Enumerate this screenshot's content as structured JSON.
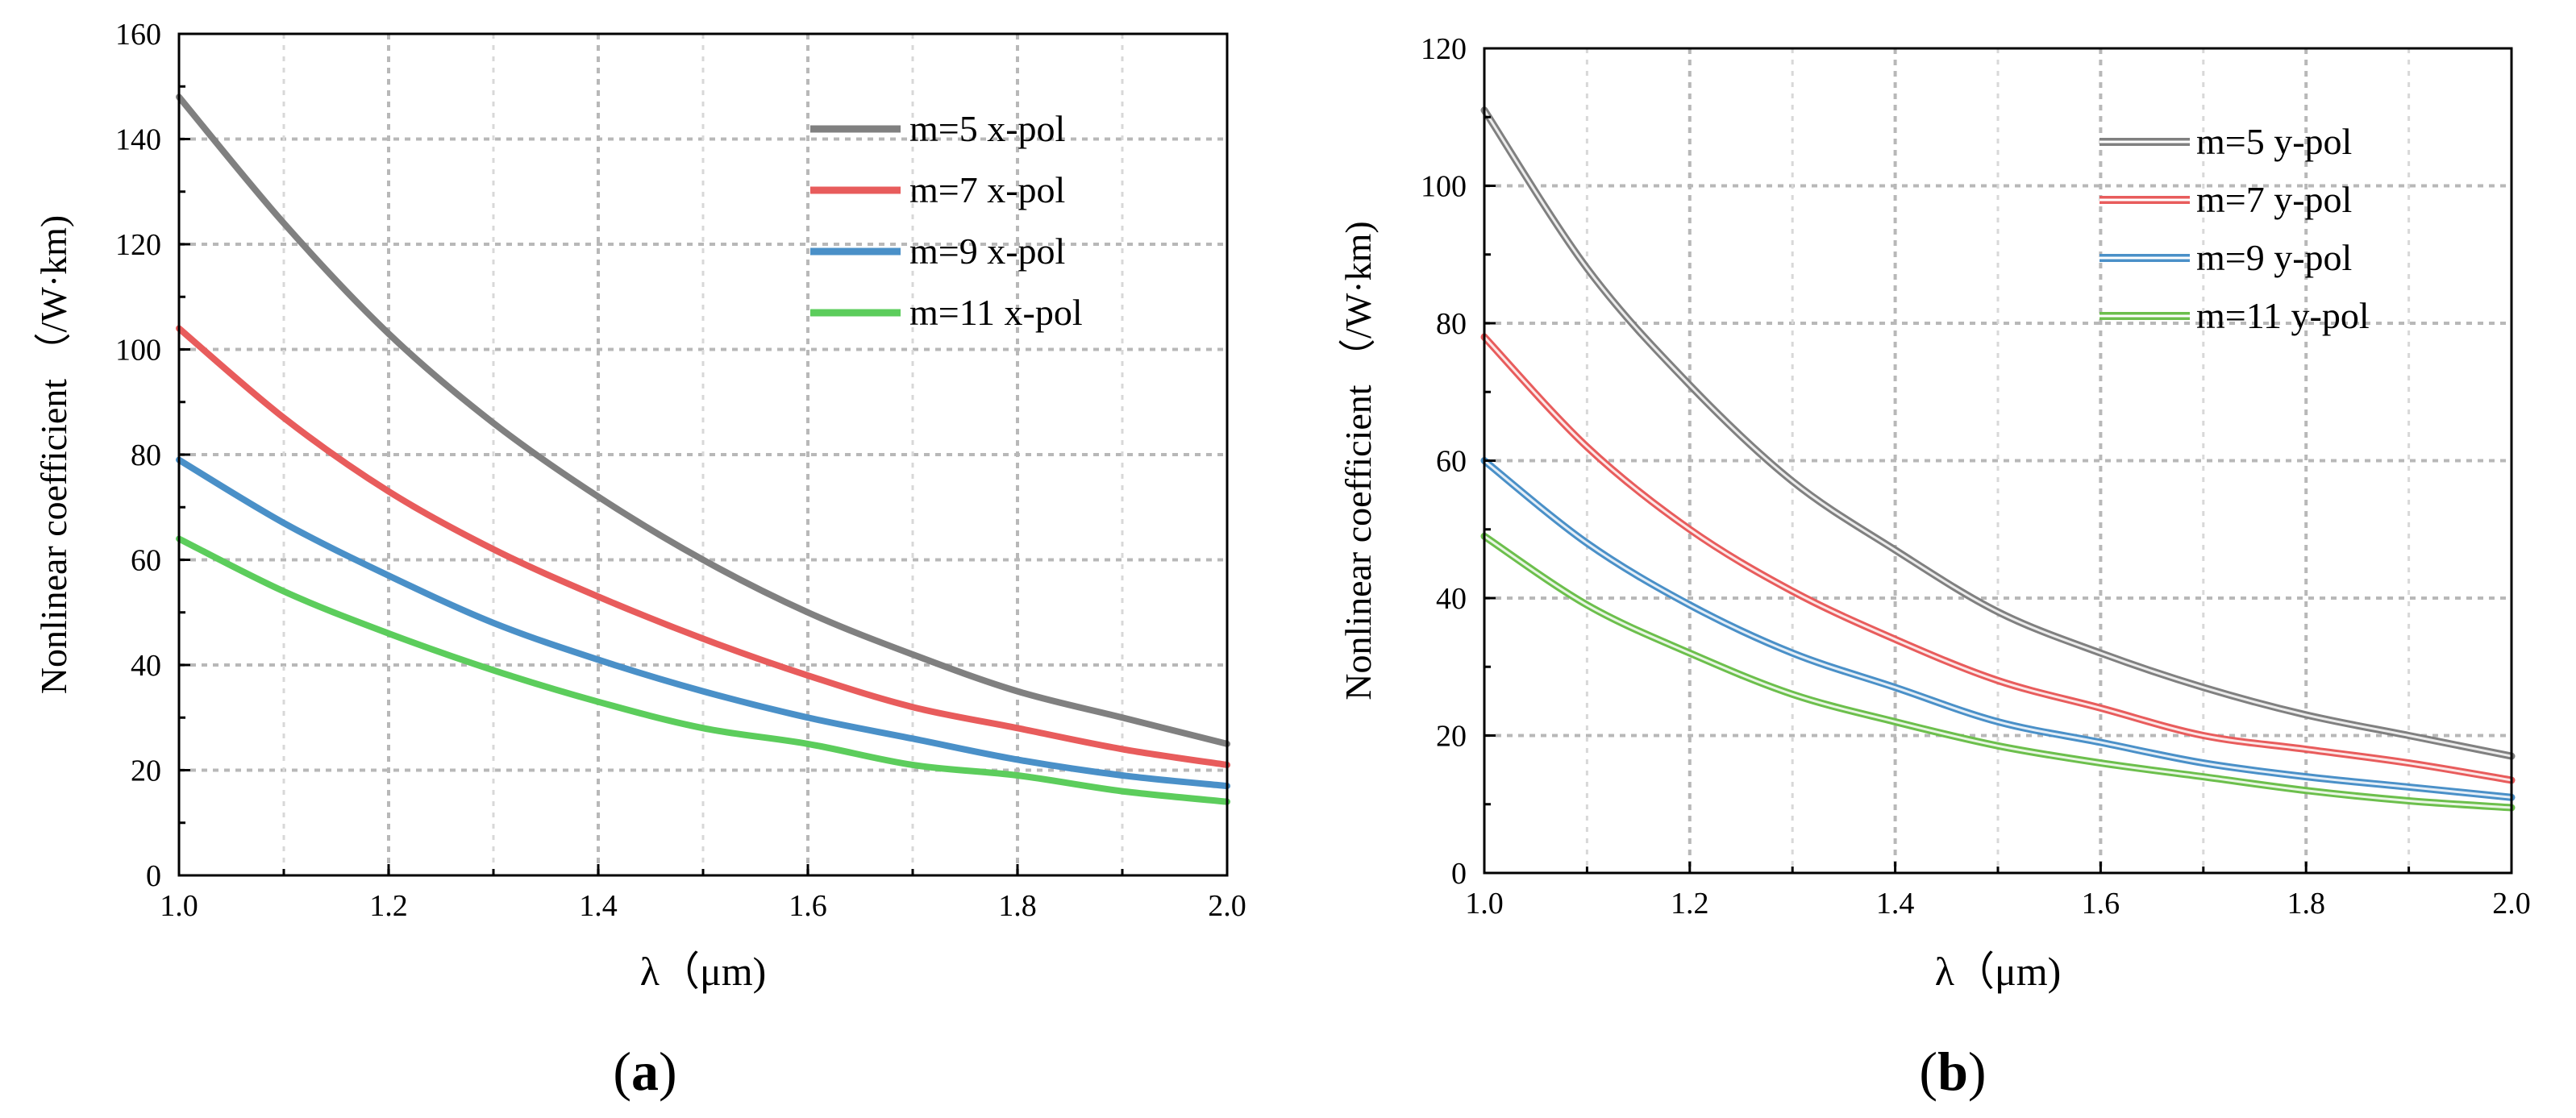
{
  "chart_data": [
    {
      "type": "line",
      "panel_label": "a",
      "title": "",
      "xlabel": "λ（μm)",
      "ylabel": "Nonlinear coefficient （/W·km)",
      "xlim": [
        1.0,
        2.0
      ],
      "ylim": [
        0,
        160
      ],
      "xticks": [
        "1.0",
        "1.2",
        "1.4",
        "1.6",
        "1.8",
        "2.0"
      ],
      "yticks": [
        "0",
        "20",
        "40",
        "60",
        "80",
        "100",
        "120",
        "140",
        "160"
      ],
      "grid": true,
      "legend_position": "top-right",
      "x": [
        1.0,
        1.1,
        1.2,
        1.3,
        1.4,
        1.5,
        1.6,
        1.7,
        1.8,
        1.9,
        2.0
      ],
      "series": [
        {
          "name": "m=5 x-pol",
          "color": "#808080",
          "style": "solid",
          "values": [
            148,
            124,
            103,
            86,
            72,
            60,
            50,
            42,
            35,
            30,
            25
          ]
        },
        {
          "name": "m=7 x-pol",
          "color": "#e85c5c",
          "style": "solid",
          "values": [
            104,
            87,
            73,
            62,
            53,
            45,
            38,
            32,
            28,
            24,
            21
          ]
        },
        {
          "name": "m=9 x-pol",
          "color": "#4a90c8",
          "style": "solid",
          "values": [
            79,
            67,
            57,
            48,
            41,
            35,
            30,
            26,
            22,
            19,
            17
          ]
        },
        {
          "name": "m=11 x-pol",
          "color": "#5ccd5c",
          "style": "solid",
          "values": [
            64,
            54,
            46,
            39,
            33,
            28,
            25,
            21,
            19,
            16,
            14
          ]
        }
      ]
    },
    {
      "type": "line",
      "panel_label": "b",
      "title": "",
      "xlabel": "λ（μm)",
      "ylabel": "Nonlinear coefficient （/W·km)",
      "xlim": [
        1.0,
        2.0
      ],
      "ylim": [
        0,
        120
      ],
      "xticks": [
        "1.0",
        "1.2",
        "1.4",
        "1.6",
        "1.8",
        "2.0"
      ],
      "yticks": [
        "0",
        "20",
        "40",
        "60",
        "80",
        "100",
        "120"
      ],
      "grid": true,
      "legend_position": "top-right",
      "x": [
        1.0,
        1.1,
        1.2,
        1.3,
        1.4,
        1.5,
        1.6,
        1.7,
        1.8,
        1.9,
        2.0
      ],
      "series": [
        {
          "name": "m=5 y-pol",
          "color": "#808080",
          "style": "double",
          "values": [
            111,
            88,
            71,
            57,
            47,
            38,
            32,
            27,
            23,
            20,
            17
          ]
        },
        {
          "name": "m=7 y-pol",
          "color": "#e85c5c",
          "style": "double",
          "values": [
            78,
            62,
            50,
            41,
            34,
            28,
            24,
            20,
            18,
            16,
            13.5
          ]
        },
        {
          "name": "m=9 y-pol",
          "color": "#4a90c8",
          "style": "double",
          "values": [
            60,
            48,
            39,
            32,
            27,
            22,
            19,
            16,
            14,
            12.5,
            11
          ]
        },
        {
          "name": "m=11 y-pol",
          "color": "#6cbf4c",
          "style": "double",
          "values": [
            49,
            39,
            32,
            26,
            22,
            18.5,
            16,
            14,
            12,
            10.5,
            9.5
          ]
        }
      ]
    }
  ]
}
